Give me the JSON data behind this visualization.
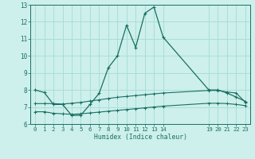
{
  "xlabel": "Humidex (Indice chaleur)",
  "bg_color": "#cdf0ec",
  "grid_color": "#aaddd8",
  "line_color": "#1a6e62",
  "xlim": [
    -0.5,
    23.5
  ],
  "ylim": [
    6,
    13
  ],
  "yticks": [
    6,
    7,
    8,
    9,
    10,
    11,
    12,
    13
  ],
  "xticks": [
    0,
    1,
    2,
    3,
    4,
    5,
    6,
    7,
    8,
    9,
    10,
    11,
    12,
    13,
    14,
    19,
    20,
    21,
    22,
    23
  ],
  "curve1_x": [
    0,
    1,
    2,
    3,
    4,
    5,
    6,
    7,
    8,
    9,
    10,
    11,
    12,
    13,
    14,
    19,
    20,
    21,
    22,
    23
  ],
  "curve1_y": [
    8.0,
    7.85,
    7.15,
    7.15,
    6.5,
    6.52,
    7.15,
    7.8,
    9.3,
    10.0,
    11.8,
    10.5,
    12.5,
    12.87,
    11.1,
    8.0,
    8.0,
    7.82,
    7.58,
    7.33
  ],
  "curve2_x": [
    0,
    1,
    2,
    3,
    4,
    5,
    6,
    7,
    8,
    9,
    10,
    11,
    12,
    13,
    14,
    19,
    20,
    21,
    22,
    23
  ],
  "curve2_y": [
    7.2,
    7.2,
    7.2,
    7.17,
    7.22,
    7.27,
    7.35,
    7.42,
    7.5,
    7.57,
    7.62,
    7.67,
    7.72,
    7.77,
    7.82,
    7.97,
    7.97,
    7.88,
    7.82,
    7.28
  ],
  "curve3_x": [
    0,
    1,
    2,
    3,
    4,
    5,
    6,
    7,
    8,
    9,
    10,
    11,
    12,
    13,
    14,
    19,
    20,
    21,
    22,
    23
  ],
  "curve3_y": [
    6.72,
    6.72,
    6.63,
    6.6,
    6.57,
    6.6,
    6.65,
    6.7,
    6.75,
    6.8,
    6.85,
    6.9,
    6.95,
    7.0,
    7.05,
    7.22,
    7.22,
    7.2,
    7.15,
    7.08
  ]
}
